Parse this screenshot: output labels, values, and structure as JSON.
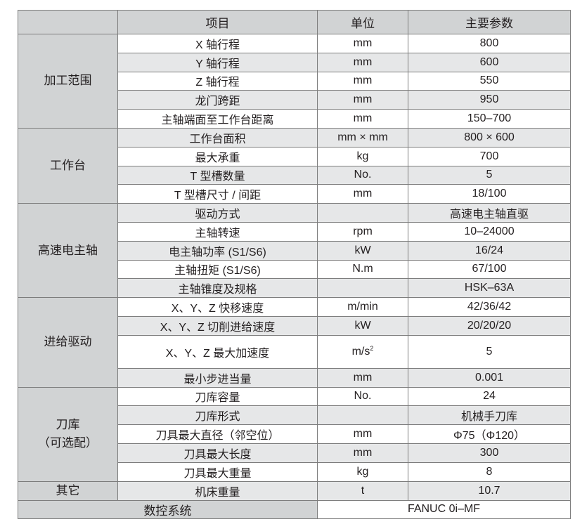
{
  "header": {
    "group": "",
    "item": "项目",
    "unit": "单位",
    "value": "主要参数"
  },
  "groups": [
    {
      "name": "加工范围",
      "rows": [
        {
          "item": "X 轴行程",
          "unit": "mm",
          "value": "800"
        },
        {
          "item": "Y 轴行程",
          "unit": "mm",
          "value": "600"
        },
        {
          "item": "Z 轴行程",
          "unit": "mm",
          "value": "550"
        },
        {
          "item": "龙门跨距",
          "unit": "mm",
          "value": "950"
        },
        {
          "item": "主轴端面至工作台距离",
          "unit": "mm",
          "value": "150–700"
        }
      ]
    },
    {
      "name": "工作台",
      "rows": [
        {
          "item": "工作台面积",
          "unit": "mm × mm",
          "value": "800 × 600"
        },
        {
          "item": "最大承重",
          "unit": "kg",
          "value": "700"
        },
        {
          "item": "T 型槽数量",
          "unit": "No.",
          "value": "5"
        },
        {
          "item": "T 型槽尺寸 / 间距",
          "unit": "mm",
          "value": "18/100"
        }
      ]
    },
    {
      "name": "高速电主轴",
      "rows": [
        {
          "item": "驱动方式",
          "unit": "",
          "value": "高速电主轴直驱"
        },
        {
          "item": "主轴转速",
          "unit": "rpm",
          "value": "10–24000"
        },
        {
          "item": "电主轴功率 (S1/S6)",
          "unit": "kW",
          "value": "16/24"
        },
        {
          "item": "主轴扭矩 (S1/S6)",
          "unit": "N.m",
          "value": "67/100"
        },
        {
          "item": "主轴锥度及规格",
          "unit": "",
          "value": "HSK–63A"
        }
      ]
    },
    {
      "name": "进给驱动",
      "rows": [
        {
          "item": "X、Y、Z 快移速度",
          "unit": "m/min",
          "value": "42/36/42"
        },
        {
          "item": "X、Y、Z 切削进给速度",
          "unit": "kW",
          "value": "20/20/20"
        },
        {
          "item": "X、Y、Z 最大加速度",
          "unit": "m/s",
          "unit_sup": "2",
          "value": "5",
          "tall": true
        },
        {
          "item": "最小步进当量",
          "unit": "mm",
          "value": "0.001"
        }
      ]
    },
    {
      "name": "刀库",
      "name2": "（可选配）",
      "rows": [
        {
          "item": "刀库容量",
          "unit": "No.",
          "value": "24"
        },
        {
          "item": "刀库形式",
          "unit": "",
          "value": "机械手刀库"
        },
        {
          "item": "刀具最大直径（邻空位）",
          "unit": "mm",
          "value": "Φ75（Φ120）"
        },
        {
          "item": "刀具最大长度",
          "unit": "mm",
          "value": "300"
        },
        {
          "item": "刀具最大重量",
          "unit": "kg",
          "value": "8"
        }
      ]
    },
    {
      "name": "其它",
      "rows": [
        {
          "item": "机床重量",
          "unit": "t",
          "value": "10.7"
        }
      ]
    }
  ],
  "control_system": {
    "label": "数控系统",
    "value": "FANUC 0i–MF"
  },
  "colors": {
    "header_bg": "#d1d3d4",
    "stripe_bg": "#e6e7e8",
    "border": "#7d7d7d"
  }
}
